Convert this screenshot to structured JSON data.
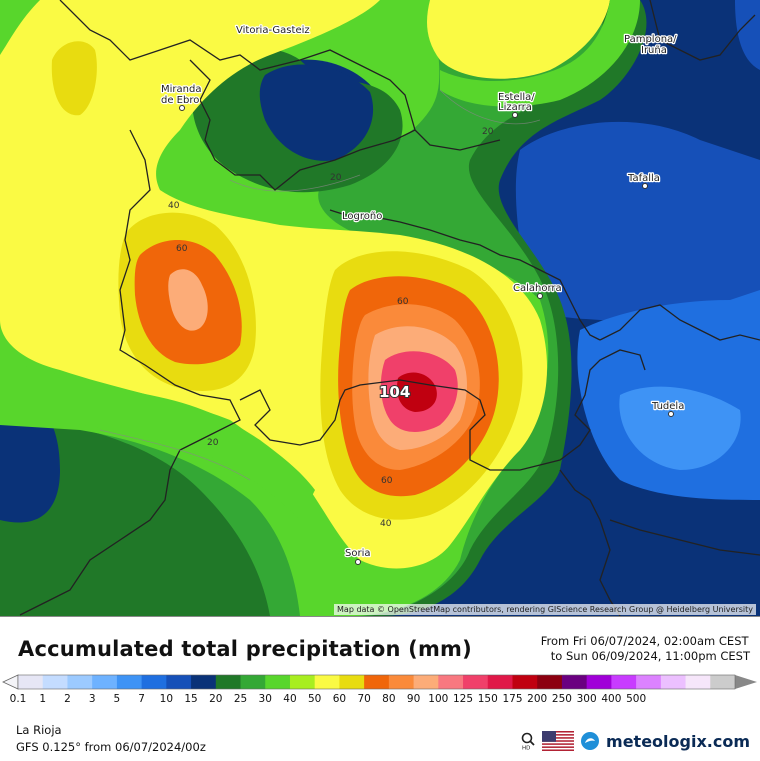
{
  "map": {
    "attribution": "Map data © OpenStreetMap contributors, rendering GIScience Research Group @ Heidelberg University",
    "max_value": "104",
    "cities": [
      {
        "name": "Vitoria-Gasteiz",
        "lines": [
          "Vitoria-Gasteiz"
        ]
      },
      {
        "name": "Pamplona/Iruña",
        "lines": [
          "Pamplona/",
          "Iruña"
        ]
      },
      {
        "name": "Miranda de Ebro",
        "lines": [
          "Miranda",
          "de Ebro"
        ]
      },
      {
        "name": "Estella/Lizarra",
        "lines": [
          "Estella/",
          "Lizarra"
        ]
      },
      {
        "name": "Tafalla",
        "lines": [
          "Tafalla"
        ]
      },
      {
        "name": "Logroño",
        "lines": [
          "Logroño"
        ]
      },
      {
        "name": "Calahorra",
        "lines": [
          "Calahorra"
        ]
      },
      {
        "name": "Tudela",
        "lines": [
          "Tudela"
        ]
      },
      {
        "name": "Soria",
        "lines": [
          "Soria"
        ]
      }
    ],
    "contour_labels": [
      "20",
      "20",
      "20",
      "40",
      "60",
      "60",
      "60",
      "40"
    ]
  },
  "legend": {
    "title": "Accumulated total precipitation (mm)",
    "period_from": "From Fri 06/07/2024, 02:00am CEST",
    "period_to": "to Sun 06/09/2024, 11:00pm CEST",
    "region": "La Rioja",
    "model": "GFS 0.125° from  06/07/2024/00z",
    "brand": "meteologix.com",
    "scale": [
      {
        "label": "0.1",
        "color": "#e6e6f5"
      },
      {
        "label": "1",
        "color": "#c4dcff"
      },
      {
        "label": "2",
        "color": "#9ccaff"
      },
      {
        "label": "3",
        "color": "#6eb2ff"
      },
      {
        "label": "5",
        "color": "#3e93f5"
      },
      {
        "label": "7",
        "color": "#1f6fe0"
      },
      {
        "label": "10",
        "color": "#1650b8"
      },
      {
        "label": "15",
        "color": "#0a3278"
      },
      {
        "label": "20",
        "color": "#207828"
      },
      {
        "label": "25",
        "color": "#34a835"
      },
      {
        "label": "30",
        "color": "#58d62c"
      },
      {
        "label": "40",
        "color": "#a8ee20"
      },
      {
        "label": "50",
        "color": "#fafa44"
      },
      {
        "label": "60",
        "color": "#e8dc10"
      },
      {
        "label": "70",
        "color": "#f0660a"
      },
      {
        "label": "80",
        "color": "#fa8a3a"
      },
      {
        "label": "90",
        "color": "#fcac78"
      },
      {
        "label": "100",
        "color": "#f87880"
      },
      {
        "label": "125",
        "color": "#f0406a"
      },
      {
        "label": "150",
        "color": "#e01848"
      },
      {
        "label": "175",
        "color": "#c00010"
      },
      {
        "label": "200",
        "color": "#8c0010"
      },
      {
        "label": "250",
        "color": "#6a0080"
      },
      {
        "label": "300",
        "color": "#a000d8"
      },
      {
        "label": "400",
        "color": "#c83cff"
      },
      {
        "label": "500",
        "color": "#dc82ff"
      },
      {
        "label": "",
        "color": "#ecc0ff"
      },
      {
        "label": "",
        "color": "#f6e6fa"
      },
      {
        "label": "",
        "color": "#cccccc"
      }
    ]
  }
}
